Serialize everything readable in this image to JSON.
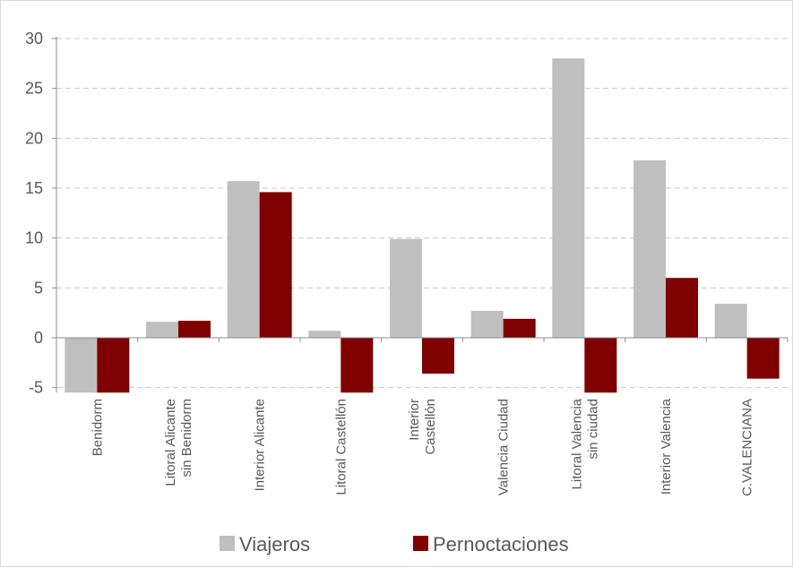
{
  "chart_data": {
    "type": "bar",
    "categories": [
      [
        "Benidorm"
      ],
      [
        "Litoral Alicante",
        "sin Benidorm"
      ],
      [
        "Interior Alicante"
      ],
      [
        "Litoral Castellón"
      ],
      [
        "Interior",
        "Castellón"
      ],
      [
        "Valencia Ciudad"
      ],
      [
        "Litoral Valencia",
        "sin ciudad"
      ],
      [
        "Interior Valencia"
      ],
      [
        "C.VALENCIANA"
      ]
    ],
    "series": [
      {
        "name": "Viajeros",
        "color": "#bfbfbf",
        "values": [
          -5.5,
          1.6,
          15.7,
          0.7,
          9.9,
          2.7,
          28.0,
          17.8,
          3.4
        ]
      },
      {
        "name": "Pernoctaciones",
        "color": "#7f0000",
        "values": [
          -5.5,
          1.7,
          14.6,
          -5.5,
          -3.6,
          1.9,
          -5.5,
          6.0,
          -4.1
        ]
      }
    ],
    "yticks": [
      -5,
      0,
      5,
      10,
      15,
      20,
      25,
      30
    ],
    "ylim": [
      -5.5,
      30
    ],
    "grid": true,
    "legend": "bottom"
  }
}
